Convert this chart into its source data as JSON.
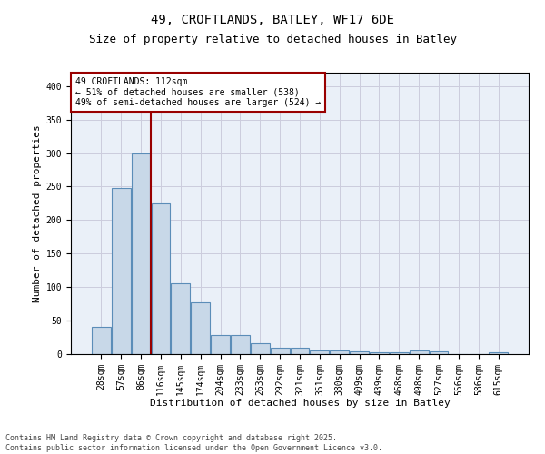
{
  "title1": "49, CROFTLANDS, BATLEY, WF17 6DE",
  "title2": "Size of property relative to detached houses in Batley",
  "xlabel": "Distribution of detached houses by size in Batley",
  "ylabel": "Number of detached properties",
  "categories": [
    "28sqm",
    "57sqm",
    "86sqm",
    "116sqm",
    "145sqm",
    "174sqm",
    "204sqm",
    "233sqm",
    "263sqm",
    "292sqm",
    "321sqm",
    "351sqm",
    "380sqm",
    "409sqm",
    "439sqm",
    "468sqm",
    "498sqm",
    "527sqm",
    "556sqm",
    "586sqm",
    "615sqm"
  ],
  "values": [
    40,
    248,
    300,
    225,
    106,
    77,
    28,
    28,
    16,
    10,
    9,
    5,
    5,
    4,
    3,
    3,
    5,
    4,
    0,
    0,
    3
  ],
  "bar_color": "#c8d8e8",
  "bar_edge_color": "#5b8db8",
  "vline_x_index": 2.5,
  "vline_color": "#990000",
  "annotation_text": "49 CROFTLANDS: 112sqm\n← 51% of detached houses are smaller (538)\n49% of semi-detached houses are larger (524) →",
  "annotation_box_color": "#990000",
  "ylim": [
    0,
    420
  ],
  "yticks": [
    0,
    50,
    100,
    150,
    200,
    250,
    300,
    350,
    400
  ],
  "grid_color": "#ccccdd",
  "bg_color": "#eaf0f8",
  "footer_text": "Contains HM Land Registry data © Crown copyright and database right 2025.\nContains public sector information licensed under the Open Government Licence v3.0.",
  "title1_fontsize": 10,
  "title2_fontsize": 9,
  "xlabel_fontsize": 8,
  "ylabel_fontsize": 8,
  "tick_fontsize": 7,
  "annotation_fontsize": 7,
  "footer_fontsize": 6
}
